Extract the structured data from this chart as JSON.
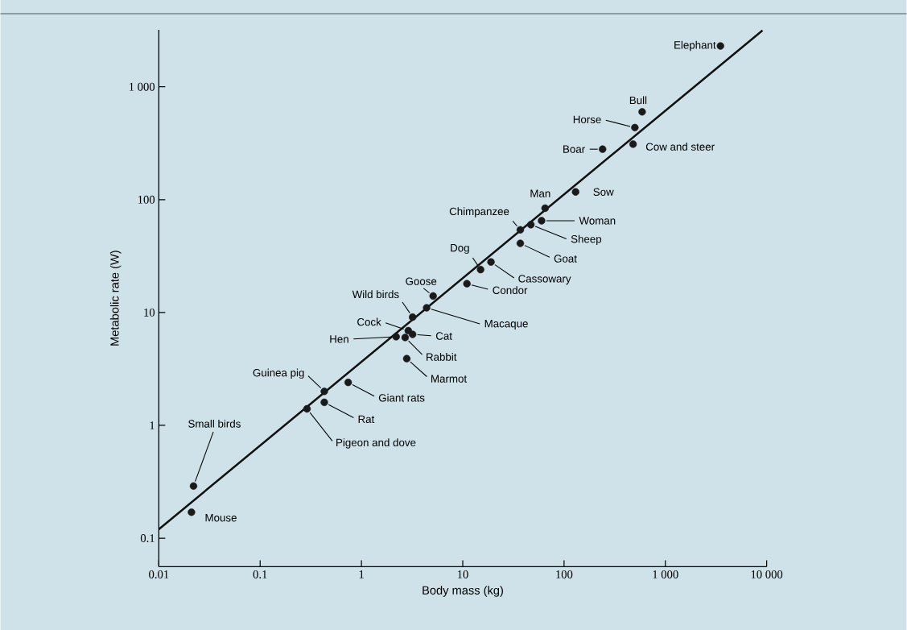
{
  "chart_data": {
    "type": "scatter",
    "xlabel": "Body mass (kg)",
    "ylabel": "Metabolic rate (W)",
    "log": "xy",
    "marker": "circle",
    "xlim": [
      0.01,
      10000
    ],
    "ylim": [
      0.056,
      3200
    ],
    "xticks": [
      0.01,
      0.1,
      1,
      10,
      100,
      {
        "value": 1000,
        "label": "1 000"
      },
      {
        "value": 10000,
        "label": "10 000"
      }
    ],
    "yticks": [
      0.1,
      1,
      10,
      100,
      {
        "value": 1000,
        "label": "1 000"
      }
    ],
    "series": [
      {
        "type": "scatter",
        "color": "#1a1a1a",
        "x": [
          3500,
          590,
          500,
          480,
          240,
          130,
          65,
          60,
          47,
          37,
          37,
          19,
          15,
          11,
          5.1,
          4.4,
          3.2,
          2.9,
          2.2,
          3.2,
          2.7,
          2.8,
          0.74,
          0.43,
          0.43,
          0.29,
          0.022,
          0.021
        ],
        "values": [
          2300,
          600,
          435,
          310,
          280,
          117,
          84,
          65,
          60,
          54,
          41,
          28,
          24,
          18,
          14,
          11,
          9.1,
          6.9,
          6.1,
          6.4,
          6.0,
          3.9,
          2.4,
          2.0,
          1.6,
          1.4,
          0.29,
          0.17
        ]
      },
      {
        "type": "line",
        "marker": "none",
        "color": "#111111",
        "x": [
          0.01,
          9100
        ],
        "values": [
          0.12,
          3160
        ]
      }
    ],
    "annotations": [
      {
        "text": "Elephant",
        "x": 3500,
        "y": 2300
      },
      {
        "text": "Bull",
        "x": 590,
        "y": 600
      },
      {
        "text": "Horse",
        "x": 500,
        "y": 435
      },
      {
        "text": "Cow and steer",
        "x": 480,
        "y": 310
      },
      {
        "text": "Boar",
        "x": 240,
        "y": 280
      },
      {
        "text": "Sow",
        "x": 130,
        "y": 117
      },
      {
        "text": "Man",
        "x": 65,
        "y": 84
      },
      {
        "text": "Woman",
        "x": 60,
        "y": 65
      },
      {
        "text": "Sheep",
        "x": 47,
        "y": 60
      },
      {
        "text": "Chimpanzee",
        "x": 37,
        "y": 54
      },
      {
        "text": "Goat",
        "x": 37,
        "y": 41
      },
      {
        "text": "Cassowary",
        "x": 19,
        "y": 28
      },
      {
        "text": "Dog",
        "x": 15,
        "y": 24
      },
      {
        "text": "Condor",
        "x": 11,
        "y": 18
      },
      {
        "text": "Goose",
        "x": 5.1,
        "y": 14
      },
      {
        "text": "Macaque",
        "x": 4.4,
        "y": 11
      },
      {
        "text": "Wild birds",
        "x": 3.2,
        "y": 9.1
      },
      {
        "text": "Cock",
        "x": 2.9,
        "y": 6.9
      },
      {
        "text": "Hen",
        "x": 2.2,
        "y": 6.1
      },
      {
        "text": "Cat",
        "x": 3.2,
        "y": 6.4
      },
      {
        "text": "Rabbit",
        "x": 2.7,
        "y": 6.0
      },
      {
        "text": "Marmot",
        "x": 2.8,
        "y": 3.9
      },
      {
        "text": "Giant rats",
        "x": 0.74,
        "y": 2.4
      },
      {
        "text": "Guinea pig",
        "x": 0.43,
        "y": 2.0
      },
      {
        "text": "Rat",
        "x": 0.43,
        "y": 1.6
      },
      {
        "text": "Pigeon and dove",
        "x": 0.29,
        "y": 1.4
      },
      {
        "text": "Small birds",
        "x": 0.022,
        "y": 0.29
      },
      {
        "text": "Mouse",
        "x": 0.021,
        "y": 0.17
      }
    ]
  }
}
